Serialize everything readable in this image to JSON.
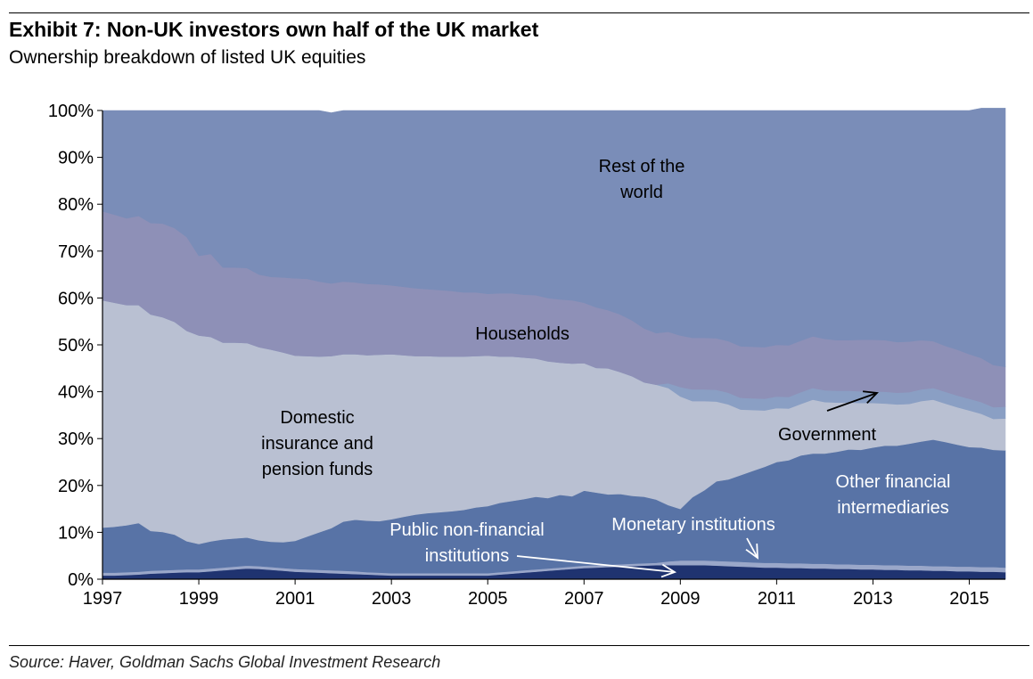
{
  "header": {
    "title": "Exhibit 7: Non-UK investors own half of the UK market",
    "subtitle": "Ownership breakdown of listed UK equities"
  },
  "footer": {
    "source": "Source: Haver, Goldman Sachs Global Investment Research"
  },
  "colors": {
    "monetary": "#1f3370",
    "public": "#9aa7c9",
    "other_fin": "#5873a6",
    "insurance": "#b9c0d2",
    "government": "#8a9fc4",
    "households": "#8e90b7",
    "rest_of_world": "#7a8db8"
  },
  "chart_data": {
    "type": "area",
    "stacked": true,
    "x": [
      1997.0,
      1997.25,
      1997.5,
      1997.75,
      1998.0,
      1998.25,
      1998.5,
      1998.75,
      1999.0,
      1999.25,
      1999.5,
      1999.75,
      2000.0,
      2000.25,
      2000.5,
      2000.75,
      2001.0,
      2001.25,
      2001.5,
      2001.75,
      2002.0,
      2002.25,
      2002.5,
      2002.75,
      2003.0,
      2003.25,
      2003.5,
      2003.75,
      2004.0,
      2004.25,
      2004.5,
      2004.75,
      2005.0,
      2005.25,
      2005.5,
      2005.75,
      2006.0,
      2006.25,
      2006.5,
      2006.75,
      2007.0,
      2007.25,
      2007.5,
      2007.75,
      2008.0,
      2008.25,
      2008.5,
      2008.75,
      2009.0,
      2009.25,
      2009.5,
      2009.75,
      2010.0,
      2010.25,
      2010.5,
      2010.75,
      2011.0,
      2011.25,
      2011.5,
      2011.75,
      2012.0,
      2012.25,
      2012.5,
      2012.75,
      2013.0,
      2013.25,
      2013.5,
      2013.75,
      2014.0,
      2014.25,
      2014.5,
      2014.75,
      2015.0,
      2015.25,
      2015.5,
      2015.75
    ],
    "series": [
      {
        "name": "Monetary institutions",
        "key": "monetary",
        "values": [
          0.8,
          0.8,
          0.9,
          1.0,
          1.2,
          1.3,
          1.4,
          1.5,
          1.5,
          1.7,
          1.9,
          2.1,
          2.3,
          2.2,
          2.0,
          1.8,
          1.6,
          1.5,
          1.4,
          1.3,
          1.2,
          1.1,
          1.0,
          0.9,
          0.8,
          0.8,
          0.8,
          0.8,
          0.8,
          0.8,
          0.8,
          0.8,
          0.8,
          1.0,
          1.2,
          1.4,
          1.6,
          1.8,
          2.0,
          2.2,
          2.4,
          2.5,
          2.6,
          2.7,
          2.8,
          2.9,
          3.0,
          3.0,
          3.0,
          3.0,
          3.0,
          2.9,
          2.8,
          2.7,
          2.6,
          2.5,
          2.5,
          2.4,
          2.4,
          2.3,
          2.3,
          2.2,
          2.2,
          2.1,
          2.1,
          2.0,
          2.0,
          1.9,
          1.9,
          1.8,
          1.8,
          1.7,
          1.7,
          1.6,
          1.6,
          1.5
        ]
      },
      {
        "name": "Public non-financial institutions",
        "key": "public",
        "values": [
          0.6,
          0.6,
          0.6,
          0.6,
          0.6,
          0.6,
          0.6,
          0.6,
          0.6,
          0.6,
          0.6,
          0.6,
          0.6,
          0.6,
          0.6,
          0.6,
          0.6,
          0.6,
          0.6,
          0.6,
          0.6,
          0.6,
          0.5,
          0.5,
          0.5,
          0.5,
          0.5,
          0.5,
          0.5,
          0.5,
          0.5,
          0.5,
          0.5,
          0.5,
          0.5,
          0.5,
          0.5,
          0.5,
          0.5,
          0.5,
          0.5,
          0.5,
          0.5,
          0.5,
          0.5,
          0.5,
          0.5,
          0.8,
          1.0,
          1.0,
          1.0,
          1.0,
          1.0,
          1.0,
          1.0,
          1.0,
          1.0,
          1.0,
          1.0,
          1.0,
          1.0,
          1.0,
          1.0,
          1.0,
          1.0,
          1.0,
          1.0,
          1.0,
          1.0,
          1.0,
          1.0,
          1.0,
          1.0,
          1.0,
          1.0,
          1.0
        ]
      },
      {
        "name": "Other financial intermediaries",
        "key": "other_fin",
        "values": [
          9.6,
          9.8,
          10.0,
          10.4,
          8.5,
          8.2,
          7.5,
          6.0,
          5.4,
          5.8,
          6.0,
          6.0,
          6.0,
          5.5,
          5.4,
          5.5,
          6.0,
          7.0,
          8.0,
          9.0,
          10.5,
          11.0,
          11.0,
          11.0,
          11.5,
          12.0,
          12.5,
          12.8,
          13.0,
          13.2,
          13.5,
          14.0,
          14.3,
          14.8,
          15.0,
          15.2,
          15.5,
          15.0,
          15.5,
          15.0,
          16.0,
          15.5,
          15.0,
          15.0,
          14.5,
          14.2,
          13.5,
          12.0,
          11.0,
          13.5,
          15.0,
          17.0,
          17.5,
          18.5,
          19.5,
          20.5,
          21.5,
          22.0,
          23.0,
          23.5,
          23.5,
          24.0,
          24.5,
          24.5,
          25.0,
          25.5,
          25.5,
          26.0,
          26.5,
          27.0,
          26.5,
          26.0,
          25.5,
          25.5,
          25.0,
          25.0
        ]
      },
      {
        "name": "Domestic insurance and pension funds",
        "key": "insurance",
        "values": [
          48.5,
          47.8,
          47.0,
          46.5,
          46.2,
          45.8,
          45.4,
          44.9,
          44.5,
          43.6,
          42.0,
          41.8,
          41.5,
          41.2,
          41.0,
          40.5,
          39.5,
          38.5,
          37.5,
          36.7,
          35.7,
          35.3,
          35.3,
          35.5,
          35.2,
          34.5,
          33.8,
          33.5,
          33.2,
          33.0,
          32.7,
          32.3,
          32.1,
          31.2,
          30.8,
          30.2,
          29.5,
          29.2,
          28.2,
          28.3,
          27.2,
          26.6,
          26.9,
          26.0,
          25.5,
          24.4,
          24.5,
          25.0,
          24.0,
          20.5,
          19.0,
          17.0,
          16.0,
          14.0,
          13.0,
          12.0,
          11.5,
          11.0,
          11.0,
          11.5,
          11.0,
          10.5,
          10.0,
          10.0,
          9.5,
          9.0,
          8.8,
          8.5,
          8.6,
          8.5,
          8.2,
          8.0,
          7.8,
          7.2,
          6.6,
          6.8
        ]
      },
      {
        "name": "Government",
        "key": "government",
        "values": [
          0.0,
          0.0,
          0.0,
          0.0,
          0.0,
          0.0,
          0.0,
          0.0,
          0.0,
          0.0,
          0.0,
          0.0,
          0.0,
          0.0,
          0.0,
          0.0,
          0.0,
          0.0,
          0.0,
          0.0,
          0.0,
          0.0,
          0.0,
          0.0,
          0.0,
          0.0,
          0.0,
          0.0,
          0.0,
          0.0,
          0.0,
          0.0,
          0.0,
          0.0,
          0.0,
          0.0,
          0.0,
          0.0,
          0.0,
          0.0,
          0.0,
          0.0,
          0.0,
          0.0,
          0.0,
          0.0,
          0.0,
          1.0,
          2.0,
          2.5,
          2.5,
          2.5,
          2.5,
          2.5,
          2.5,
          2.5,
          2.5,
          2.5,
          2.5,
          2.5,
          2.5,
          2.5,
          2.5,
          2.5,
          2.5,
          2.5,
          2.5,
          2.5,
          2.5,
          2.5,
          2.5,
          2.5,
          2.5,
          2.5,
          2.5,
          2.5
        ]
      },
      {
        "name": "Households",
        "key": "households",
        "values": [
          19.0,
          18.8,
          18.5,
          19.0,
          19.5,
          20.0,
          20.0,
          20.0,
          17.0,
          17.7,
          16.0,
          16.0,
          16.0,
          15.5,
          15.5,
          16.0,
          16.5,
          16.5,
          16.0,
          15.5,
          15.5,
          15.3,
          15.2,
          15.0,
          14.7,
          14.6,
          14.5,
          14.3,
          14.2,
          14.0,
          13.7,
          13.6,
          13.2,
          13.5,
          13.5,
          13.4,
          13.5,
          13.5,
          13.5,
          13.5,
          12.9,
          12.9,
          12.4,
          12.3,
          11.9,
          11.5,
          11.0,
          11.0,
          11.0,
          11.0,
          11.0,
          11.0,
          11.0,
          11.0,
          11.0,
          11.0,
          11.0,
          11.0,
          11.0,
          11.0,
          11.0,
          10.8,
          10.8,
          11.0,
          11.0,
          11.0,
          10.8,
          10.8,
          10.5,
          10.0,
          9.8,
          9.8,
          9.5,
          9.4,
          9.0,
          8.5
        ]
      },
      {
        "name": "Rest of the world",
        "key": "rest_of_world",
        "values": [
          21.5,
          22.2,
          23.0,
          22.5,
          24.0,
          24.1,
          25.1,
          27.0,
          31.0,
          30.6,
          33.5,
          33.5,
          33.6,
          35.0,
          35.5,
          35.6,
          35.8,
          35.9,
          36.5,
          36.4,
          36.5,
          36.7,
          37.0,
          37.1,
          37.3,
          37.6,
          37.9,
          38.1,
          38.3,
          38.5,
          38.8,
          38.8,
          39.1,
          39.0,
          39.0,
          39.3,
          39.4,
          40.0,
          40.3,
          40.5,
          41.0,
          42.0,
          42.6,
          43.5,
          44.8,
          46.5,
          47.5,
          47.2,
          48.0,
          48.5,
          48.5,
          48.6,
          49.2,
          50.3,
          50.4,
          50.5,
          50.0,
          50.1,
          49.1,
          48.2,
          48.7,
          49.0,
          49.0,
          48.9,
          48.9,
          49.0,
          49.4,
          49.3,
          49.0,
          49.2,
          50.2,
          51.0,
          52.0,
          53.3,
          54.8,
          55.2
        ]
      }
    ],
    "xlim": [
      1997,
      2015.75
    ],
    "ylim": [
      0,
      100
    ],
    "xticks": [
      "1997",
      "1999",
      "2001",
      "2003",
      "2005",
      "2007",
      "2009",
      "2011",
      "2013",
      "2015"
    ],
    "yticks": [
      "0%",
      "10%",
      "20%",
      "30%",
      "40%",
      "50%",
      "60%",
      "70%",
      "80%",
      "90%",
      "100%"
    ],
    "grid": false,
    "legend": "none (labels drawn inside chart)",
    "annotations": {
      "rest_of_world": [
        "Rest of the",
        "world"
      ],
      "households": [
        "Households"
      ],
      "insurance": [
        "Domestic",
        "insurance and",
        "pension funds"
      ],
      "government": [
        "Government"
      ],
      "other_fin": [
        "Other financial",
        "intermediaries"
      ],
      "monetary": [
        "Monetary institutions"
      ],
      "public": [
        "Public non-financial",
        "institutions"
      ]
    }
  }
}
